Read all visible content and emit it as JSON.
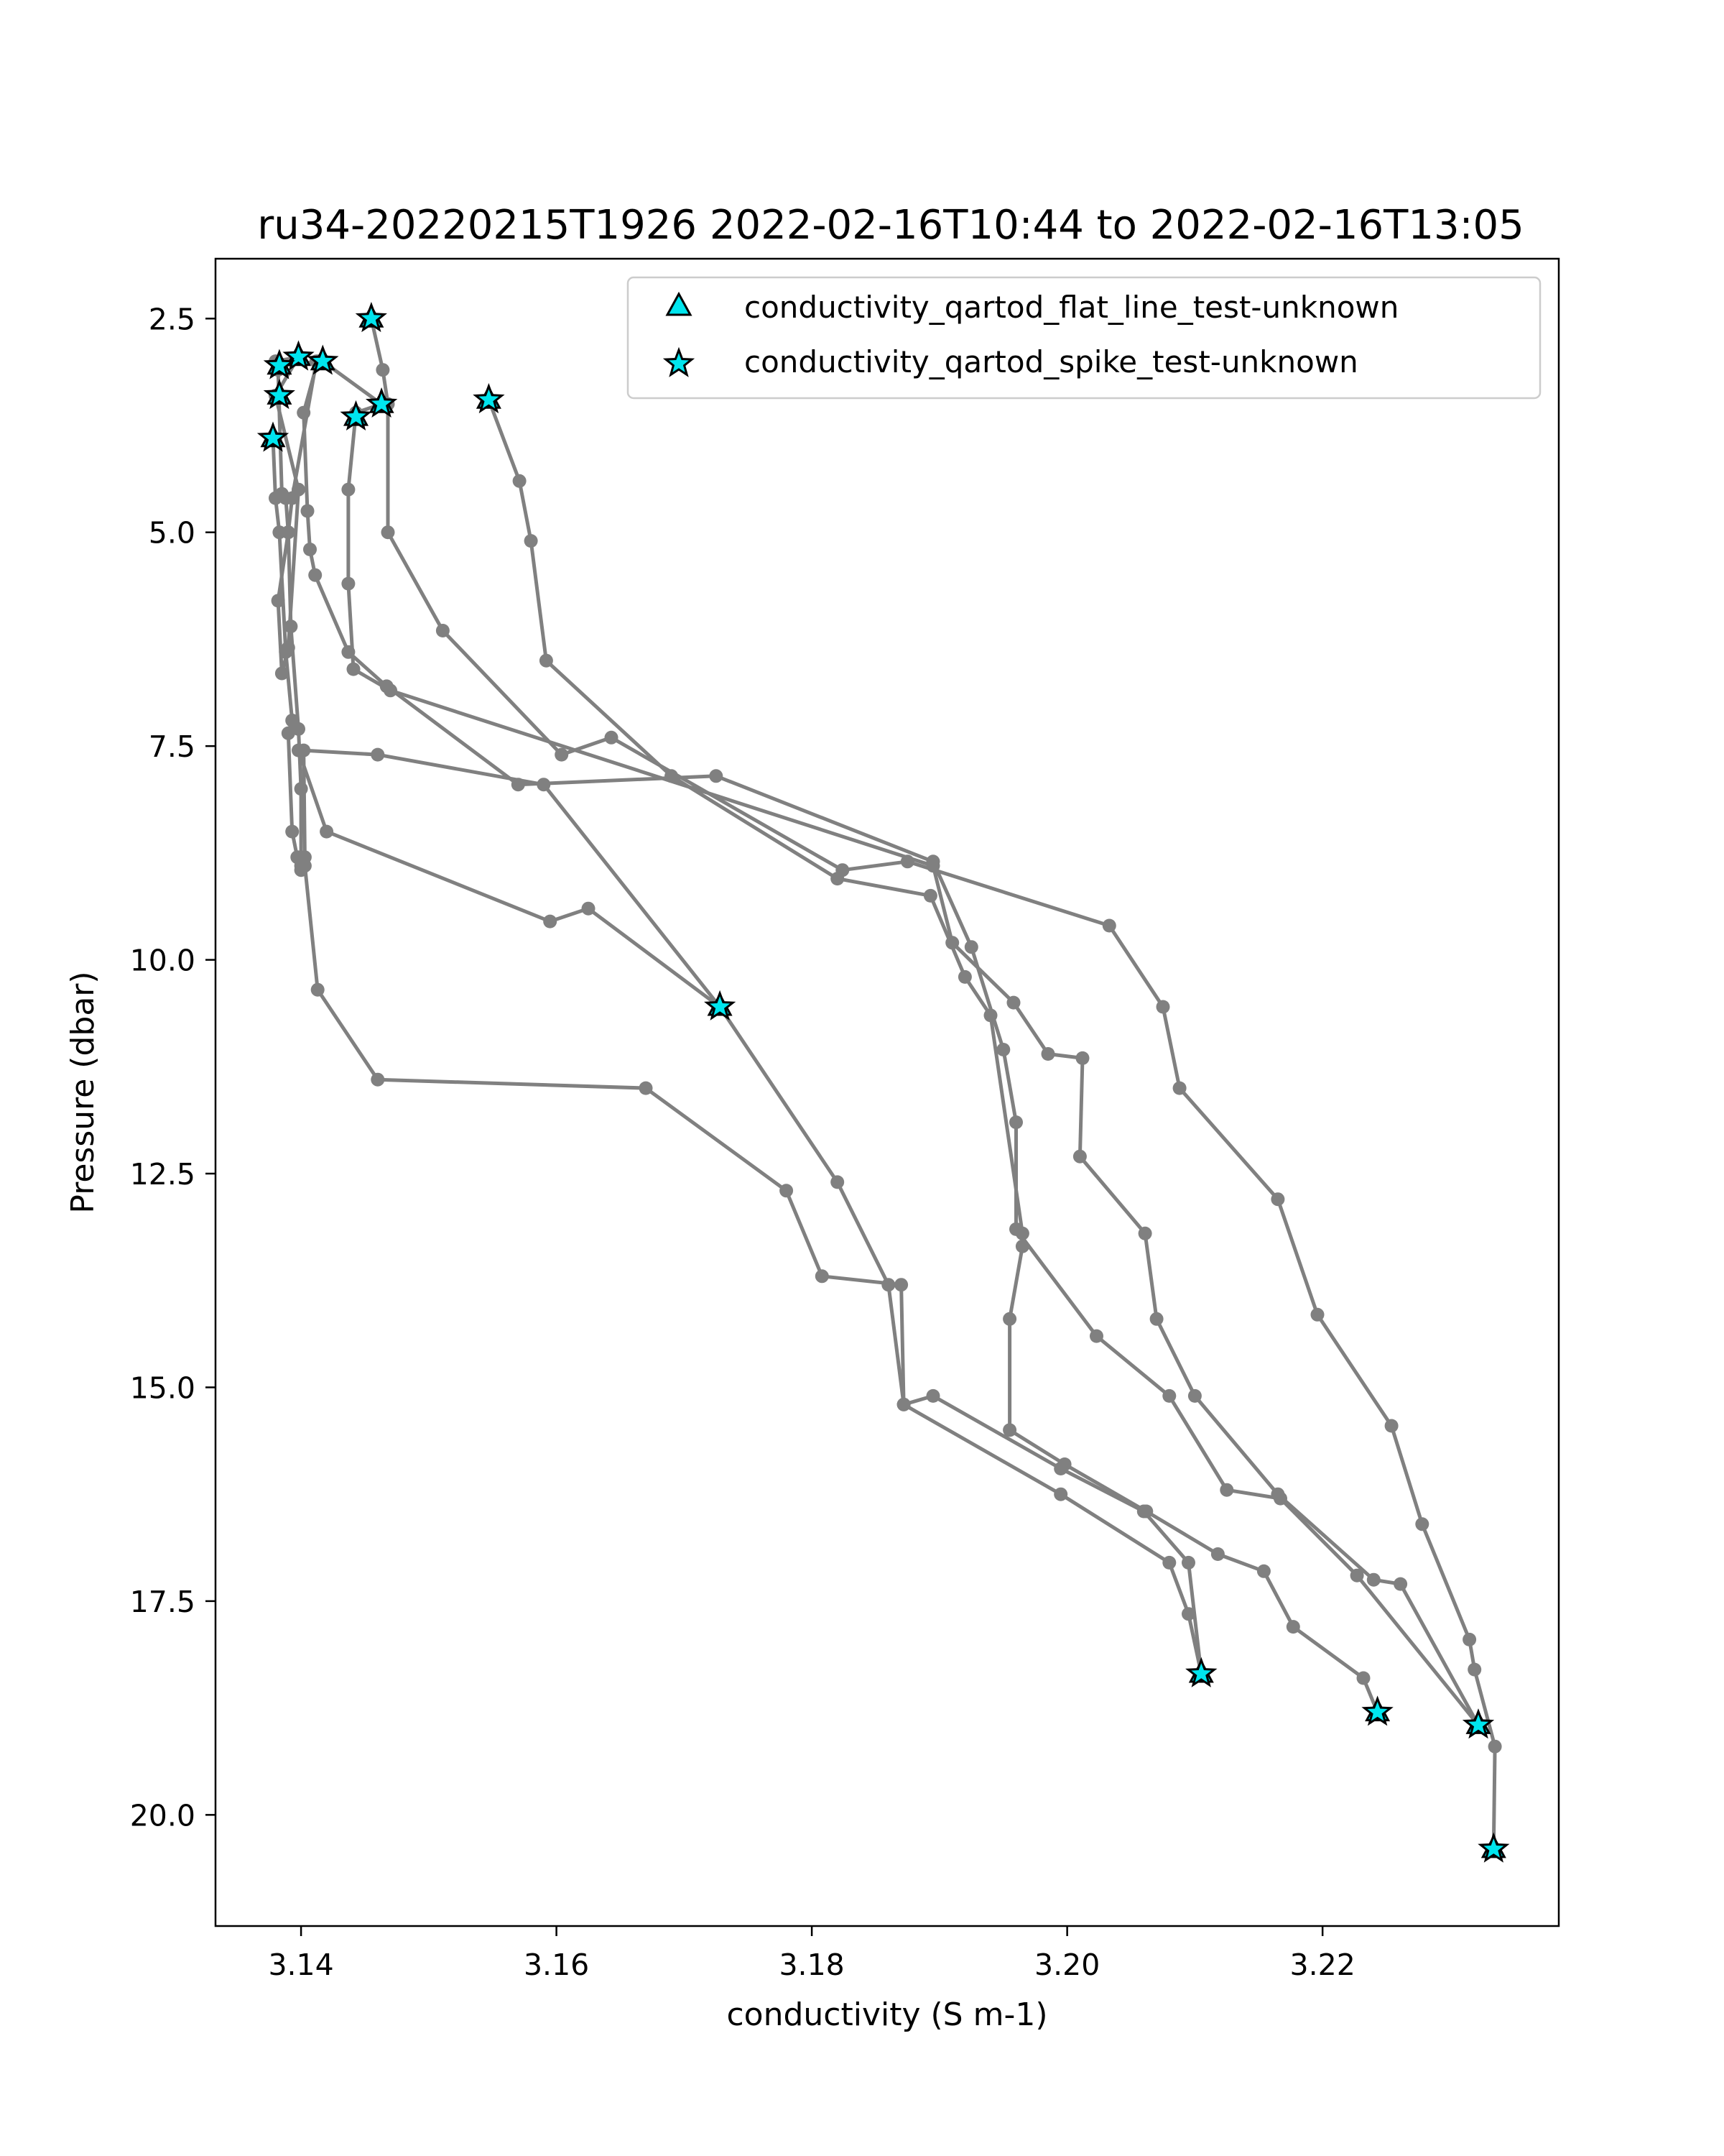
{
  "chart_data": {
    "type": "line",
    "title": "ru34-20220215T1926 2022-02-16T10:44 to 2022-02-16T13:05",
    "xlabel": "conductivity (S m-1)",
    "ylabel": "Pressure (dbar)",
    "xlim": [
      3.1333,
      3.2385
    ],
    "ylim": [
      21.3,
      1.8
    ],
    "y_inverted": true,
    "xticks": [
      3.14,
      3.16,
      3.18,
      3.2,
      3.22
    ],
    "xtick_labels": [
      "3.14",
      "3.16",
      "3.18",
      "3.20",
      "3.22"
    ],
    "yticks": [
      2.5,
      5.0,
      7.5,
      10.0,
      12.5,
      15.0,
      17.5,
      20.0
    ],
    "ytick_labels": [
      "2.5",
      "5.0",
      "7.5",
      "10.0",
      "12.5",
      "15.0",
      "17.5",
      "20.0"
    ],
    "grid": false,
    "legend_placement": "upper right",
    "colors": {
      "line": "#808080",
      "marker_fill": "#00e5ee",
      "marker_edge": "#000000"
    },
    "legend": [
      {
        "label": "conductivity_qartod_flat_line_test-unknown",
        "marker": "triangle"
      },
      {
        "label": "conductivity_qartod_spike_test-unknown",
        "marker": "star"
      }
    ],
    "series": [
      {
        "x": [
          3.1455,
          3.1464,
          3.1468,
          3.1468,
          3.1511,
          3.1604,
          3.1643,
          3.1824,
          3.1875,
          3.2033,
          3.2075,
          3.2088,
          3.2165,
          3.2196,
          3.2254,
          3.2278,
          3.2315,
          3.2319,
          3.2335,
          3.2334
        ],
        "y": [
          2.5,
          3.1,
          3.5,
          5.0,
          6.15,
          7.6,
          7.4,
          8.95,
          8.85,
          9.6,
          10.55,
          11.5,
          12.8,
          14.15,
          15.45,
          16.6,
          17.95,
          18.3,
          19.2,
          20.4
        ]
      },
      {
        "x": [
          3.1547,
          3.1571,
          3.158,
          3.1592,
          3.169,
          3.182,
          3.1893,
          3.192,
          3.194,
          3.1965,
          3.1965,
          3.1955,
          3.1955,
          3.1998,
          3.2062,
          3.2118,
          3.2154,
          3.2177,
          3.2232,
          3.2243
        ],
        "y": [
          3.45,
          4.4,
          5.1,
          6.5,
          7.85,
          9.05,
          9.25,
          10.2,
          10.65,
          13.2,
          13.35,
          14.2,
          15.5,
          15.9,
          16.45,
          16.95,
          17.15,
          17.8,
          18.4,
          18.8
        ]
      },
      {
        "x": [
          3.1383,
          3.1417,
          3.1463,
          3.1443,
          3.1437,
          3.1437,
          3.1441,
          3.147,
          3.1895,
          3.191,
          3.1958,
          3.1985,
          3.2012,
          3.201,
          3.2061,
          3.207,
          3.21,
          3.2165,
          3.224,
          3.2261,
          3.2322
        ],
        "y": [
          3.05,
          3.0,
          3.5,
          3.6,
          4.5,
          5.6,
          6.6,
          6.85,
          8.9,
          9.8,
          10.5,
          11.1,
          11.15,
          12.3,
          13.2,
          14.2,
          15.1,
          16.25,
          17.25,
          17.3,
          18.95
        ]
      },
      {
        "x": [
          3.138,
          3.1398,
          3.138,
          3.1398,
          3.139,
          3.1385,
          3.1382,
          3.139,
          3.1393,
          3.1412,
          3.1413,
          3.1402,
          3.1405,
          3.1407,
          3.1411,
          3.1437,
          3.1467,
          3.157,
          3.1725,
          3.1895,
          3.1925,
          3.195,
          3.196,
          3.196,
          3.2023,
          3.208,
          3.2125,
          3.2167,
          3.2227,
          3.2322
        ],
        "y": [
          3.0,
          2.95,
          3.4,
          4.5,
          6.35,
          6.65,
          5.8,
          5.0,
          4.6,
          3.0,
          3.0,
          3.6,
          4.75,
          5.2,
          5.5,
          6.4,
          6.8,
          7.95,
          7.85,
          8.85,
          9.85,
          11.05,
          11.9,
          13.15,
          14.4,
          15.1,
          16.2,
          16.3,
          17.2,
          18.95
        ]
      },
      {
        "x": [
          3.1378,
          3.138,
          3.1383,
          3.1388,
          3.1393,
          3.139,
          3.1393,
          3.1397,
          3.14,
          3.1403,
          3.1402,
          3.146,
          3.159,
          3.1728
        ],
        "y": [
          3.9,
          4.6,
          5.0,
          6.4,
          7.2,
          7.35,
          8.5,
          8.8,
          8.95,
          8.8,
          7.55,
          7.6,
          7.95,
          10.55
        ]
      },
      {
        "x": [
          3.138,
          3.1382,
          3.1385,
          3.1388,
          3.139,
          3.1392,
          3.1398,
          3.14,
          3.14,
          3.14,
          3.1403,
          3.1413,
          3.146,
          3.167,
          3.178,
          3.1808,
          3.187,
          3.1872,
          3.1995,
          3.208,
          3.2095,
          3.2105
        ],
        "y": [
          3.0,
          3.1,
          4.55,
          4.6,
          5.0,
          6.1,
          7.3,
          8.0,
          8.8,
          8.9,
          8.9,
          10.35,
          11.4,
          11.5,
          12.7,
          13.7,
          13.8,
          15.2,
          16.25,
          17.05,
          17.65,
          18.35
        ]
      },
      {
        "x": [
          3.1398,
          3.142,
          3.1595,
          3.1625,
          3.1728,
          3.182,
          3.186,
          3.1872,
          3.1895,
          3.1995,
          3.206,
          3.2095,
          3.2105
        ],
        "y": [
          7.55,
          8.5,
          9.55,
          9.4,
          10.55,
          12.6,
          13.8,
          15.2,
          15.1,
          15.95,
          16.45,
          17.05,
          18.35
        ]
      }
    ],
    "spike_points": [
      {
        "x": 3.1455,
        "y": 2.5
      },
      {
        "x": 3.1398,
        "y": 2.95
      },
      {
        "x": 3.1383,
        "y": 3.05
      },
      {
        "x": 3.1417,
        "y": 3.0
      },
      {
        "x": 3.1383,
        "y": 3.4
      },
      {
        "x": 3.1547,
        "y": 3.45
      },
      {
        "x": 3.1463,
        "y": 3.5
      },
      {
        "x": 3.1443,
        "y": 3.65
      },
      {
        "x": 3.1378,
        "y": 3.9
      },
      {
        "x": 3.1728,
        "y": 10.55
      },
      {
        "x": 3.2105,
        "y": 18.35
      },
      {
        "x": 3.2243,
        "y": 18.8
      },
      {
        "x": 3.2322,
        "y": 18.95
      },
      {
        "x": 3.2334,
        "y": 20.4
      }
    ]
  }
}
